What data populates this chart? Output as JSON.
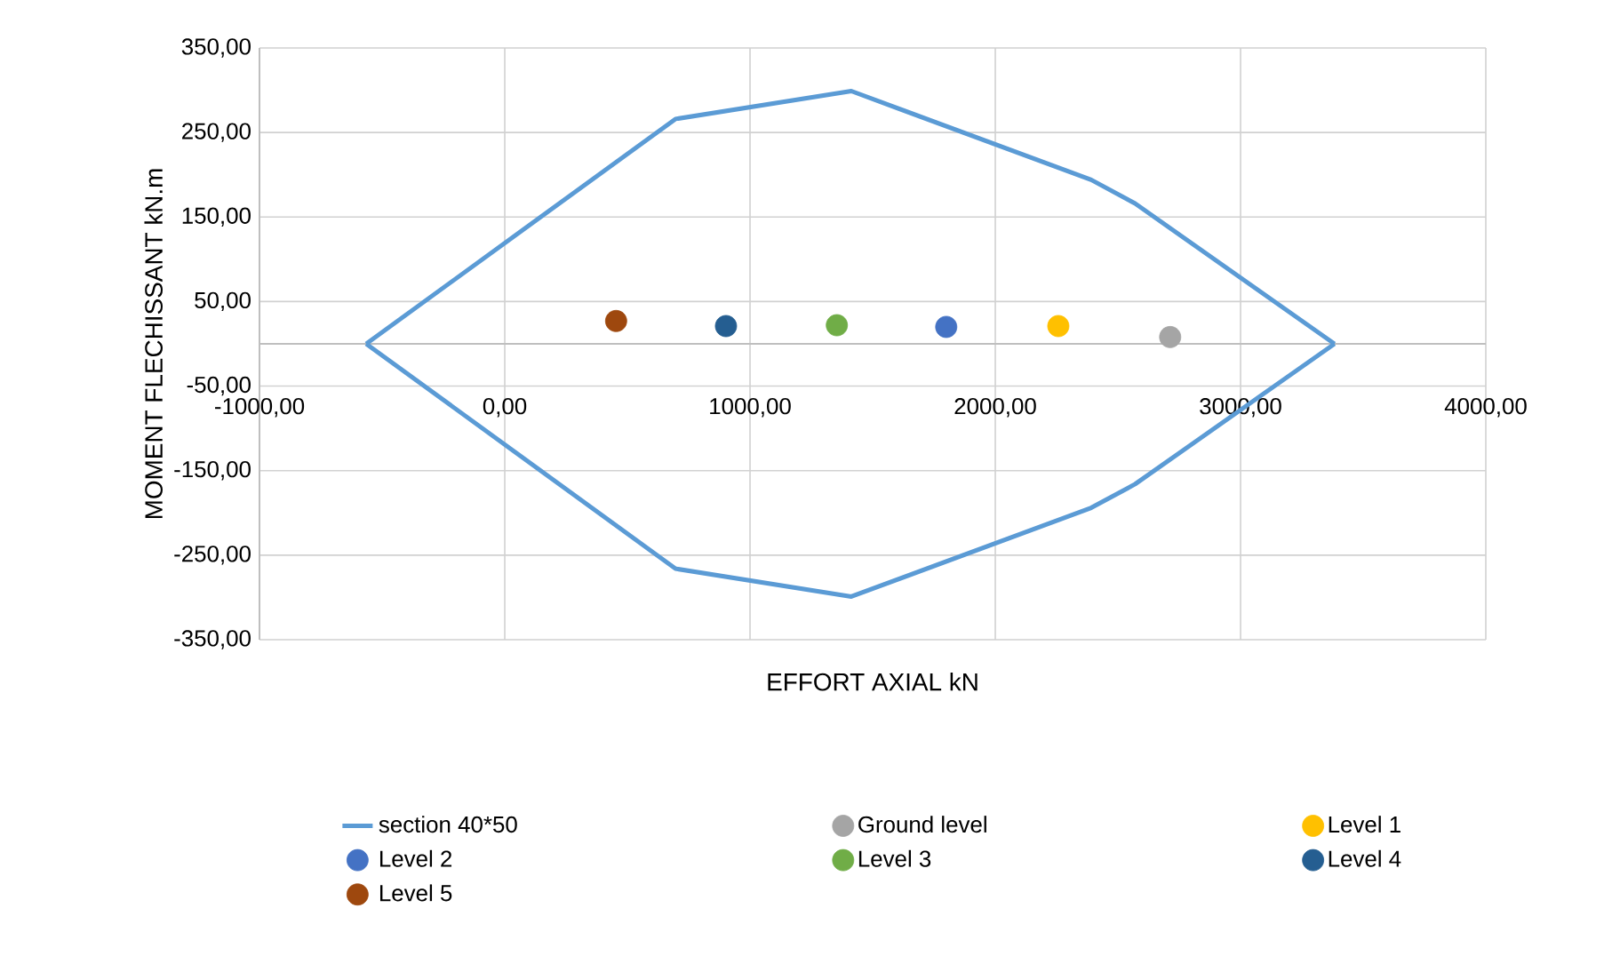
{
  "chart_data": {
    "type": "scatter",
    "xlabel": "EFFORT AXIAL kN",
    "ylabel": "MOMENT FLECHISSANT kN.m",
    "xlim": [
      -1000,
      4000
    ],
    "ylim": [
      -350,
      350
    ],
    "xticks": [
      {
        "value": -1000,
        "label": "-1000,00"
      },
      {
        "value": 0,
        "label": "0,00"
      },
      {
        "value": 1000,
        "label": "1000,00"
      },
      {
        "value": 2000,
        "label": "2000,00"
      },
      {
        "value": 3000,
        "label": "3000,00"
      },
      {
        "value": 4000,
        "label": "4000,00"
      }
    ],
    "yticks": [
      {
        "value": -350,
        "label": "-350,00"
      },
      {
        "value": -250,
        "label": "-250,00"
      },
      {
        "value": -150,
        "label": "-150,00"
      },
      {
        "value": -50,
        "label": "-50,00"
      },
      {
        "value": 50,
        "label": "50,00"
      },
      {
        "value": 150,
        "label": "150,00"
      },
      {
        "value": 250,
        "label": "250,00"
      },
      {
        "value": 350,
        "label": "350,00"
      }
    ],
    "grid": true,
    "legend": "bottom",
    "series": [
      {
        "name": "section 40*50",
        "type": "line",
        "marker": "none",
        "color": "#5b9bd5",
        "x": [
          -565,
          696,
          1413,
          2391,
          2570,
          3383
        ],
        "values": [
          0,
          266,
          299,
          194,
          166,
          0
        ]
      },
      {
        "type": "line",
        "marker": "none",
        "color": "#5b9bd5",
        "x": [
          -565,
          696,
          1413,
          2391,
          2570,
          3383
        ],
        "values": [
          0,
          -266,
          -299,
          -194,
          -166,
          0
        ]
      },
      {
        "name": "Ground level",
        "marker": "circle",
        "color": "#a5a5a5",
        "x": [
          2713
        ],
        "values": [
          8
        ]
      },
      {
        "name": "Level 1",
        "marker": "circle",
        "color": "#ffc000",
        "x": [
          2257
        ],
        "values": [
          21
        ]
      },
      {
        "name": "Level 2",
        "marker": "circle",
        "color": "#4472c4",
        "x": [
          1800
        ],
        "values": [
          20
        ]
      },
      {
        "name": "Level 3",
        "marker": "circle",
        "color": "#70ad47",
        "x": [
          1354
        ],
        "values": [
          22
        ]
      },
      {
        "name": "Level 4",
        "marker": "circle",
        "color": "#255e91",
        "x": [
          902
        ],
        "values": [
          21
        ]
      },
      {
        "name": "Level 5",
        "marker": "circle",
        "color": "#9e480e",
        "x": [
          454
        ],
        "values": [
          27
        ]
      }
    ]
  }
}
